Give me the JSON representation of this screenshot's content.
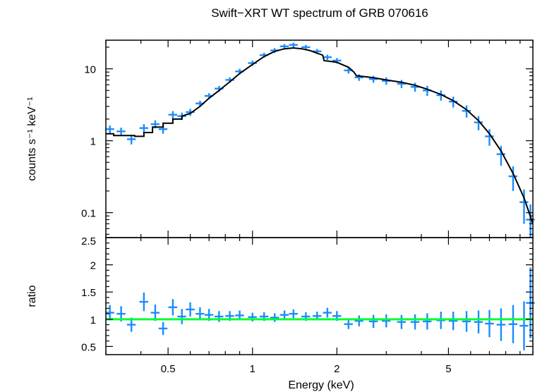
{
  "chart_data": [
    {
      "type": "scatter",
      "title": "Swift−XRT WT spectrum of GRB 070616",
      "xlabel": "Energy (keV)",
      "ylabel": "counts s⁻¹ keV⁻¹",
      "xscale": "log",
      "yscale": "log",
      "xlim": [
        0.3,
        10
      ],
      "ylim": [
        0.045,
        25
      ],
      "x_ticks": [
        "0.5",
        "1",
        "2",
        "5"
      ],
      "y_ticks": [
        "0.1",
        "1",
        "10"
      ],
      "colors": {
        "data": "#1a8cff",
        "model": "#000000"
      },
      "series": [
        {
          "kind": "data",
          "points": [
            {
              "x": 0.31,
              "y": 1.45,
              "xerr": 0.012,
              "yerr": 0.18
            },
            {
              "x": 0.34,
              "y": 1.35,
              "xerr": 0.012,
              "yerr": 0.17
            },
            {
              "x": 0.37,
              "y": 1.05,
              "xerr": 0.012,
              "yerr": 0.16
            },
            {
              "x": 0.41,
              "y": 1.5,
              "xerr": 0.012,
              "yerr": 0.2
            },
            {
              "x": 0.45,
              "y": 1.7,
              "xerr": 0.012,
              "yerr": 0.22
            },
            {
              "x": 0.48,
              "y": 1.45,
              "xerr": 0.012,
              "yerr": 0.2
            },
            {
              "x": 0.52,
              "y": 2.3,
              "xerr": 0.012,
              "yerr": 0.28
            },
            {
              "x": 0.56,
              "y": 2.2,
              "xerr": 0.012,
              "yerr": 0.26
            },
            {
              "x": 0.6,
              "y": 2.5,
              "xerr": 0.012,
              "yerr": 0.28
            },
            {
              "x": 0.65,
              "y": 3.3,
              "xerr": 0.012,
              "yerr": 0.3
            },
            {
              "x": 0.7,
              "y": 4.2,
              "xerr": 0.012,
              "yerr": 0.4
            },
            {
              "x": 0.76,
              "y": 5.3,
              "xerr": 0.012,
              "yerr": 0.5
            },
            {
              "x": 0.83,
              "y": 7.0,
              "xerr": 0.012,
              "yerr": 0.6
            },
            {
              "x": 0.9,
              "y": 9.2,
              "xerr": 0.012,
              "yerr": 0.8
            },
            {
              "x": 1.0,
              "y": 12.0,
              "xerr": 0.012,
              "yerr": 1.0
            },
            {
              "x": 1.1,
              "y": 15.5,
              "xerr": 0.012,
              "yerr": 1.2
            },
            {
              "x": 1.2,
              "y": 18.0,
              "xerr": 0.012,
              "yerr": 1.4
            },
            {
              "x": 1.3,
              "y": 20.5,
              "xerr": 0.012,
              "yerr": 1.6
            },
            {
              "x": 1.4,
              "y": 21.5,
              "xerr": 0.012,
              "yerr": 1.6
            },
            {
              "x": 1.55,
              "y": 20.0,
              "xerr": 0.012,
              "yerr": 1.5
            },
            {
              "x": 1.7,
              "y": 17.5,
              "xerr": 0.012,
              "yerr": 1.4
            },
            {
              "x": 1.85,
              "y": 14.5,
              "xerr": 0.012,
              "yerr": 1.2
            },
            {
              "x": 2.0,
              "y": 13.0,
              "xerr": 0.012,
              "yerr": 1.1
            },
            {
              "x": 2.2,
              "y": 9.5,
              "xerr": 0.012,
              "yerr": 0.9
            },
            {
              "x": 2.4,
              "y": 7.6,
              "xerr": 0.012,
              "yerr": 0.8
            },
            {
              "x": 2.7,
              "y": 7.2,
              "xerr": 0.012,
              "yerr": 0.8
            },
            {
              "x": 3.0,
              "y": 6.8,
              "xerr": 0.012,
              "yerr": 0.8
            },
            {
              "x": 3.4,
              "y": 6.2,
              "xerr": 0.012,
              "yerr": 0.8
            },
            {
              "x": 3.8,
              "y": 5.6,
              "xerr": 0.012,
              "yerr": 0.8
            },
            {
              "x": 4.2,
              "y": 5.0,
              "xerr": 0.012,
              "yerr": 0.8
            },
            {
              "x": 4.7,
              "y": 4.3,
              "xerr": 0.012,
              "yerr": 0.7
            },
            {
              "x": 5.2,
              "y": 3.5,
              "xerr": 0.012,
              "yerr": 0.6
            },
            {
              "x": 5.8,
              "y": 2.6,
              "xerr": 0.012,
              "yerr": 0.5
            },
            {
              "x": 6.4,
              "y": 1.8,
              "xerr": 0.012,
              "yerr": 0.4
            },
            {
              "x": 7.0,
              "y": 1.15,
              "xerr": 0.012,
              "yerr": 0.3
            },
            {
              "x": 7.7,
              "y": 0.65,
              "xerr": 0.012,
              "yerr": 0.2
            },
            {
              "x": 8.5,
              "y": 0.32,
              "xerr": 0.012,
              "yerr": 0.12
            },
            {
              "x": 9.3,
              "y": 0.14,
              "xerr": 0.012,
              "yerr": 0.07
            },
            {
              "x": 9.8,
              "y": 0.08,
              "xerr": 0.012,
              "yerr": 0.05
            }
          ]
        },
        {
          "kind": "model",
          "points": [
            {
              "x": 0.3,
              "y": 1.25
            },
            {
              "x": 0.32,
              "y": 1.25
            },
            {
              "x": 0.32,
              "y": 1.18
            },
            {
              "x": 0.38,
              "y": 1.18
            },
            {
              "x": 0.38,
              "y": 1.15
            },
            {
              "x": 0.41,
              "y": 1.15
            },
            {
              "x": 0.41,
              "y": 1.3
            },
            {
              "x": 0.44,
              "y": 1.3
            },
            {
              "x": 0.44,
              "y": 1.55
            },
            {
              "x": 0.48,
              "y": 1.55
            },
            {
              "x": 0.48,
              "y": 1.75
            },
            {
              "x": 0.52,
              "y": 1.75
            },
            {
              "x": 0.52,
              "y": 2.0
            },
            {
              "x": 0.56,
              "y": 2.0
            },
            {
              "x": 0.56,
              "y": 2.2
            },
            {
              "x": 0.6,
              "y": 2.4
            },
            {
              "x": 0.65,
              "y": 3.0
            },
            {
              "x": 0.7,
              "y": 3.9
            },
            {
              "x": 0.76,
              "y": 5.0
            },
            {
              "x": 0.83,
              "y": 6.6
            },
            {
              "x": 0.9,
              "y": 8.6
            },
            {
              "x": 1.0,
              "y": 11.5
            },
            {
              "x": 1.1,
              "y": 14.8
            },
            {
              "x": 1.2,
              "y": 17.5
            },
            {
              "x": 1.3,
              "y": 19.0
            },
            {
              "x": 1.4,
              "y": 19.5
            },
            {
              "x": 1.5,
              "y": 19.0
            },
            {
              "x": 1.6,
              "y": 18.0
            },
            {
              "x": 1.7,
              "y": 16.5
            },
            {
              "x": 1.78,
              "y": 15.5
            },
            {
              "x": 1.8,
              "y": 13.0
            },
            {
              "x": 1.87,
              "y": 12.8
            },
            {
              "x": 2.0,
              "y": 12.3
            },
            {
              "x": 2.2,
              "y": 10.5
            },
            {
              "x": 2.3,
              "y": 9.0
            },
            {
              "x": 2.35,
              "y": 8.0
            },
            {
              "x": 2.5,
              "y": 7.8
            },
            {
              "x": 2.7,
              "y": 7.5
            },
            {
              "x": 3.0,
              "y": 7.0
            },
            {
              "x": 3.4,
              "y": 6.5
            },
            {
              "x": 3.8,
              "y": 5.9
            },
            {
              "x": 4.2,
              "y": 5.2
            },
            {
              "x": 4.7,
              "y": 4.4
            },
            {
              "x": 5.2,
              "y": 3.6
            },
            {
              "x": 5.8,
              "y": 2.7
            },
            {
              "x": 6.4,
              "y": 1.9
            },
            {
              "x": 7.0,
              "y": 1.25
            },
            {
              "x": 7.7,
              "y": 0.72
            },
            {
              "x": 8.5,
              "y": 0.35
            },
            {
              "x": 9.3,
              "y": 0.16
            },
            {
              "x": 10.0,
              "y": 0.07
            }
          ]
        }
      ]
    },
    {
      "type": "scatter",
      "xlabel": "Energy (keV)",
      "ylabel": "ratio",
      "xscale": "log",
      "yscale": "linear",
      "xlim": [
        0.3,
        10
      ],
      "ylim": [
        0.35,
        2.5
      ],
      "x_ticks": [
        "0.5",
        "1",
        "2",
        "5"
      ],
      "y_ticks": [
        "0.5",
        "1",
        "1.5",
        "2",
        "2.5"
      ],
      "reference_line": 1,
      "colors": {
        "data": "#1a8cff",
        "reference": "#00ff33"
      },
      "series": [
        {
          "kind": "data",
          "points": [
            {
              "x": 0.31,
              "y": 1.12,
              "xerr": 0.012,
              "yerr": 0.14
            },
            {
              "x": 0.34,
              "y": 1.1,
              "xerr": 0.012,
              "yerr": 0.14
            },
            {
              "x": 0.37,
              "y": 0.9,
              "xerr": 0.012,
              "yerr": 0.13
            },
            {
              "x": 0.41,
              "y": 1.32,
              "xerr": 0.012,
              "yerr": 0.17
            },
            {
              "x": 0.45,
              "y": 1.12,
              "xerr": 0.012,
              "yerr": 0.15
            },
            {
              "x": 0.48,
              "y": 0.83,
              "xerr": 0.012,
              "yerr": 0.12
            },
            {
              "x": 0.52,
              "y": 1.22,
              "xerr": 0.012,
              "yerr": 0.15
            },
            {
              "x": 0.56,
              "y": 1.05,
              "xerr": 0.012,
              "yerr": 0.14
            },
            {
              "x": 0.6,
              "y": 1.18,
              "xerr": 0.012,
              "yerr": 0.13
            },
            {
              "x": 0.65,
              "y": 1.1,
              "xerr": 0.012,
              "yerr": 0.12
            },
            {
              "x": 0.7,
              "y": 1.08,
              "xerr": 0.012,
              "yerr": 0.11
            },
            {
              "x": 0.76,
              "y": 1.05,
              "xerr": 0.012,
              "yerr": 0.1
            },
            {
              "x": 0.83,
              "y": 1.06,
              "xerr": 0.012,
              "yerr": 0.09
            },
            {
              "x": 0.9,
              "y": 1.07,
              "xerr": 0.012,
              "yerr": 0.09
            },
            {
              "x": 1.0,
              "y": 1.04,
              "xerr": 0.012,
              "yerr": 0.08
            },
            {
              "x": 1.1,
              "y": 1.05,
              "xerr": 0.012,
              "yerr": 0.08
            },
            {
              "x": 1.2,
              "y": 1.03,
              "xerr": 0.012,
              "yerr": 0.08
            },
            {
              "x": 1.3,
              "y": 1.08,
              "xerr": 0.012,
              "yerr": 0.08
            },
            {
              "x": 1.4,
              "y": 1.1,
              "xerr": 0.012,
              "yerr": 0.08
            },
            {
              "x": 1.55,
              "y": 1.05,
              "xerr": 0.012,
              "yerr": 0.08
            },
            {
              "x": 1.7,
              "y": 1.06,
              "xerr": 0.012,
              "yerr": 0.08
            },
            {
              "x": 1.85,
              "y": 1.12,
              "xerr": 0.012,
              "yerr": 0.09
            },
            {
              "x": 2.0,
              "y": 1.06,
              "xerr": 0.012,
              "yerr": 0.09
            },
            {
              "x": 2.2,
              "y": 0.91,
              "xerr": 0.012,
              "yerr": 0.09
            },
            {
              "x": 2.4,
              "y": 0.97,
              "xerr": 0.012,
              "yerr": 0.1
            },
            {
              "x": 2.7,
              "y": 0.96,
              "xerr": 0.012,
              "yerr": 0.12
            },
            {
              "x": 3.0,
              "y": 0.97,
              "xerr": 0.012,
              "yerr": 0.12
            },
            {
              "x": 3.4,
              "y": 0.95,
              "xerr": 0.012,
              "yerr": 0.13
            },
            {
              "x": 3.8,
              "y": 0.95,
              "xerr": 0.012,
              "yerr": 0.14
            },
            {
              "x": 4.2,
              "y": 0.96,
              "xerr": 0.012,
              "yerr": 0.15
            },
            {
              "x": 4.7,
              "y": 0.98,
              "xerr": 0.012,
              "yerr": 0.16
            },
            {
              "x": 5.2,
              "y": 0.97,
              "xerr": 0.012,
              "yerr": 0.17
            },
            {
              "x": 5.8,
              "y": 0.96,
              "xerr": 0.012,
              "yerr": 0.19
            },
            {
              "x": 6.4,
              "y": 0.95,
              "xerr": 0.012,
              "yerr": 0.21
            },
            {
              "x": 7.0,
              "y": 0.92,
              "xerr": 0.012,
              "yerr": 0.25
            },
            {
              "x": 7.7,
              "y": 0.9,
              "xerr": 0.012,
              "yerr": 0.3
            },
            {
              "x": 8.5,
              "y": 0.91,
              "xerr": 0.012,
              "yerr": 0.35
            },
            {
              "x": 9.3,
              "y": 0.88,
              "xerr": 0.012,
              "yerr": 0.45
            },
            {
              "x": 9.8,
              "y": 1.3,
              "xerr": 0.012,
              "yerr": 0.65
            }
          ]
        }
      ]
    }
  ]
}
